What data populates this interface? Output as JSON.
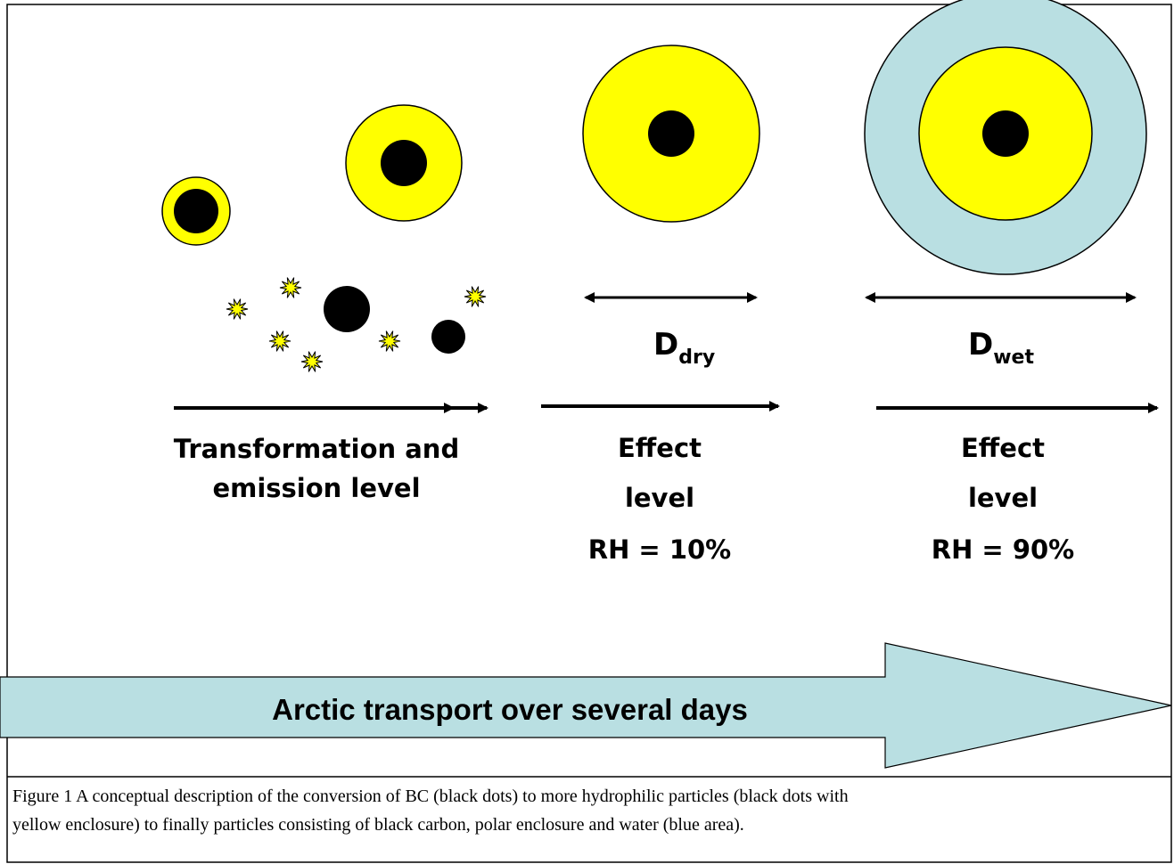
{
  "labels": {
    "stage1": [
      "Transformation and",
      "emission level"
    ],
    "stage2": [
      "Effect",
      "level",
      "RH = 10%"
    ],
    "stage3": [
      "Effect",
      "level",
      "RH = 90%"
    ],
    "d_dry": {
      "main": "D",
      "sub": "dry"
    },
    "d_wet": {
      "main": "D",
      "sub": "wet"
    },
    "transport": "Arctic transport over several days"
  },
  "caption": {
    "lines": [
      "Figure 1 A conceptual description of the conversion of BC (black dots) to more hydrophilic particles (black dots with",
      "yellow enclosure) to finally particles consisting of black carbon, polar enclosure and water (blue area)."
    ]
  }
}
